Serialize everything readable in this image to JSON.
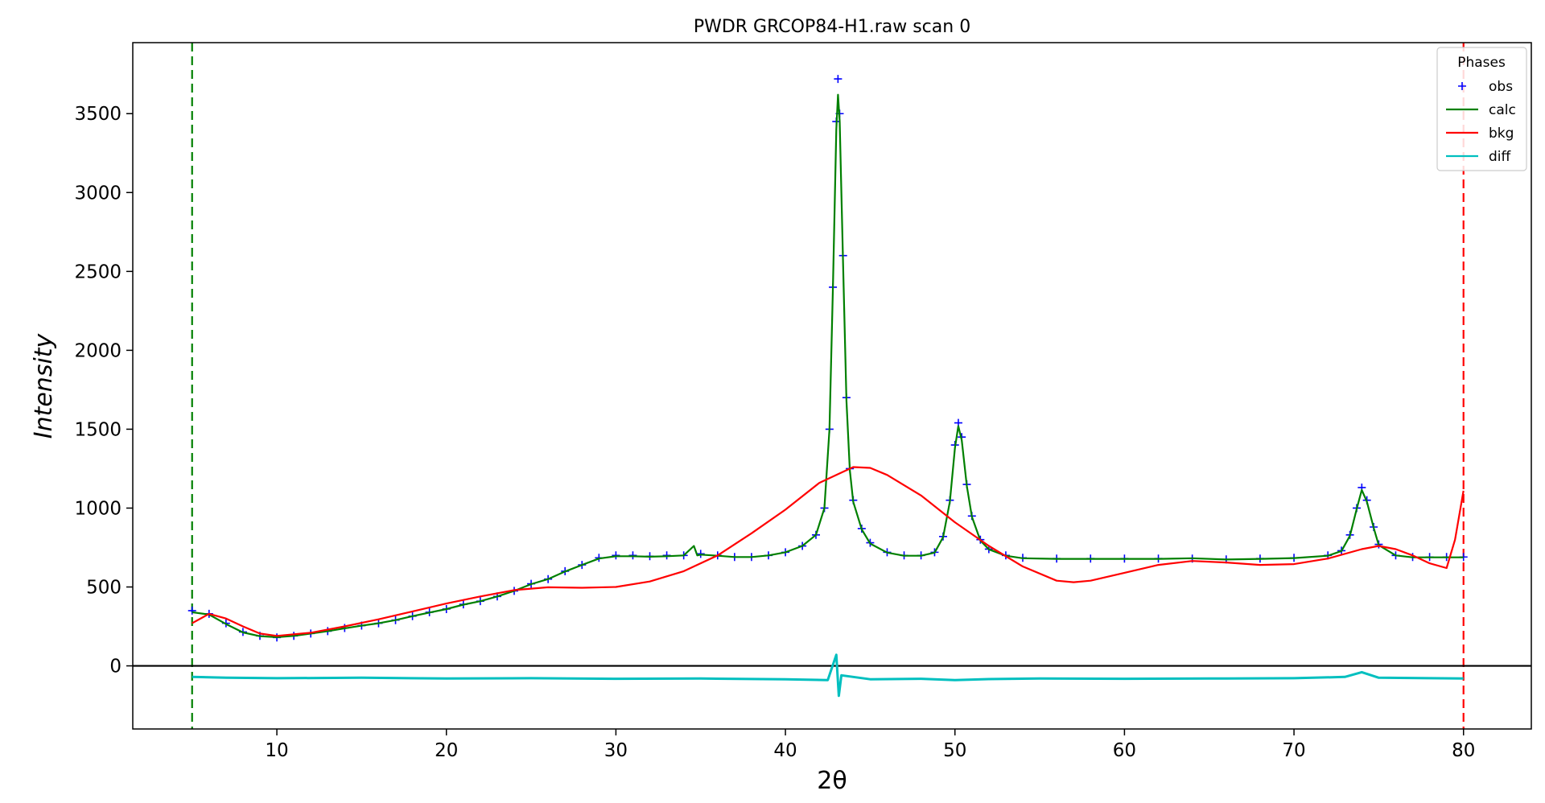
{
  "chart_data": {
    "type": "scatter",
    "title": "PWDR GRCOP84-H1.raw scan 0",
    "xlabel": "2θ",
    "ylabel": "Intensity",
    "xlim": [
      1.5,
      84
    ],
    "ylim": [
      -400,
      3950
    ],
    "x_ticks": [
      10,
      20,
      30,
      40,
      50,
      60,
      70,
      80
    ],
    "y_ticks": [
      0,
      500,
      1000,
      1500,
      2000,
      2500,
      3000,
      3500
    ],
    "grid": false,
    "legend": {
      "title": "Phases",
      "placement": "top-right",
      "entries": [
        {
          "name": "obs",
          "marker": "+",
          "color": "#0000ff"
        },
        {
          "name": "calc",
          "marker": "line",
          "color": "#008000"
        },
        {
          "name": "bkg",
          "marker": "line",
          "color": "#ff0000"
        },
        {
          "name": "diff",
          "marker": "line",
          "color": "#00bfbf"
        }
      ]
    },
    "reference_lines": [
      {
        "orientation": "vertical",
        "x": 5,
        "style": "dashed",
        "color": "#008000"
      },
      {
        "orientation": "vertical",
        "x": 80,
        "style": "dashed",
        "color": "#ff0000"
      },
      {
        "orientation": "horizontal",
        "y": 0,
        "style": "solid",
        "color": "#000000"
      }
    ],
    "series": [
      {
        "name": "obs",
        "color": "#0000ff",
        "marker": "+",
        "points": [
          [
            5,
            350
          ],
          [
            6,
            330
          ],
          [
            7,
            270
          ],
          [
            8,
            215
          ],
          [
            9,
            190
          ],
          [
            10,
            180
          ],
          [
            11,
            190
          ],
          [
            12,
            205
          ],
          [
            13,
            220
          ],
          [
            14,
            240
          ],
          [
            15,
            255
          ],
          [
            16,
            270
          ],
          [
            17,
            290
          ],
          [
            18,
            315
          ],
          [
            19,
            340
          ],
          [
            20,
            360
          ],
          [
            21,
            390
          ],
          [
            22,
            410
          ],
          [
            23,
            440
          ],
          [
            24,
            475
          ],
          [
            25,
            520
          ],
          [
            26,
            550
          ],
          [
            27,
            600
          ],
          [
            28,
            640
          ],
          [
            29,
            685
          ],
          [
            30,
            700
          ],
          [
            31,
            700
          ],
          [
            32,
            695
          ],
          [
            33,
            700
          ],
          [
            34,
            700
          ],
          [
            35,
            710
          ],
          [
            36,
            700
          ],
          [
            37,
            690
          ],
          [
            38,
            690
          ],
          [
            39,
            700
          ],
          [
            40,
            720
          ],
          [
            41,
            760
          ],
          [
            41.8,
            830
          ],
          [
            42.3,
            1000
          ],
          [
            42.6,
            1500
          ],
          [
            42.8,
            2400
          ],
          [
            43,
            3450
          ],
          [
            43.1,
            3720
          ],
          [
            43.2,
            3500
          ],
          [
            43.4,
            2600
          ],
          [
            43.6,
            1700
          ],
          [
            43.8,
            1250
          ],
          [
            44,
            1050
          ],
          [
            44.5,
            870
          ],
          [
            45,
            780
          ],
          [
            46,
            720
          ],
          [
            47,
            700
          ],
          [
            48,
            700
          ],
          [
            48.8,
            720
          ],
          [
            49.3,
            820
          ],
          [
            49.7,
            1050
          ],
          [
            50,
            1400
          ],
          [
            50.2,
            1540
          ],
          [
            50.4,
            1450
          ],
          [
            50.7,
            1150
          ],
          [
            51,
            950
          ],
          [
            51.5,
            800
          ],
          [
            52,
            740
          ],
          [
            53,
            700
          ],
          [
            54,
            685
          ],
          [
            56,
            680
          ],
          [
            58,
            680
          ],
          [
            60,
            680
          ],
          [
            62,
            680
          ],
          [
            64,
            680
          ],
          [
            66,
            675
          ],
          [
            68,
            680
          ],
          [
            70,
            685
          ],
          [
            72,
            700
          ],
          [
            72.8,
            730
          ],
          [
            73.3,
            830
          ],
          [
            73.7,
            1000
          ],
          [
            74,
            1130
          ],
          [
            74.3,
            1050
          ],
          [
            74.7,
            880
          ],
          [
            75,
            770
          ],
          [
            76,
            700
          ],
          [
            77,
            690
          ],
          [
            78,
            690
          ],
          [
            79,
            690
          ],
          [
            80,
            690
          ]
        ]
      },
      {
        "name": "calc",
        "color": "#008000",
        "points": [
          [
            5,
            340
          ],
          [
            6,
            325
          ],
          [
            7,
            265
          ],
          [
            8,
            212
          ],
          [
            9,
            188
          ],
          [
            10,
            182
          ],
          [
            11,
            190
          ],
          [
            12,
            205
          ],
          [
            13,
            220
          ],
          [
            14,
            238
          ],
          [
            15,
            255
          ],
          [
            16,
            270
          ],
          [
            17,
            290
          ],
          [
            18,
            315
          ],
          [
            19,
            338
          ],
          [
            20,
            360
          ],
          [
            21,
            388
          ],
          [
            22,
            410
          ],
          [
            23,
            440
          ],
          [
            24,
            475
          ],
          [
            25,
            518
          ],
          [
            26,
            550
          ],
          [
            27,
            598
          ],
          [
            28,
            640
          ],
          [
            29,
            680
          ],
          [
            30,
            695
          ],
          [
            31,
            695
          ],
          [
            32,
            692
          ],
          [
            33,
            695
          ],
          [
            34,
            700
          ],
          [
            34.6,
            760
          ],
          [
            34.8,
            700
          ],
          [
            35,
            705
          ],
          [
            36,
            698
          ],
          [
            37,
            690
          ],
          [
            38,
            690
          ],
          [
            39,
            700
          ],
          [
            40,
            720
          ],
          [
            41,
            760
          ],
          [
            41.8,
            830
          ],
          [
            42.3,
            1000
          ],
          [
            42.6,
            1500
          ],
          [
            42.8,
            2400
          ],
          [
            43,
            3400
          ],
          [
            43.1,
            3620
          ],
          [
            43.2,
            3450
          ],
          [
            43.4,
            2550
          ],
          [
            43.6,
            1680
          ],
          [
            43.8,
            1240
          ],
          [
            44,
            1040
          ],
          [
            44.5,
            865
          ],
          [
            45,
            775
          ],
          [
            46,
            718
          ],
          [
            47,
            698
          ],
          [
            48,
            698
          ],
          [
            48.8,
            718
          ],
          [
            49.3,
            815
          ],
          [
            49.7,
            1040
          ],
          [
            50,
            1380
          ],
          [
            50.2,
            1520
          ],
          [
            50.4,
            1430
          ],
          [
            50.7,
            1140
          ],
          [
            51,
            945
          ],
          [
            51.5,
            795
          ],
          [
            52,
            738
          ],
          [
            53,
            698
          ],
          [
            54,
            682
          ],
          [
            56,
            678
          ],
          [
            58,
            678
          ],
          [
            60,
            678
          ],
          [
            62,
            678
          ],
          [
            64,
            682
          ],
          [
            66,
            674
          ],
          [
            68,
            678
          ],
          [
            70,
            683
          ],
          [
            72,
            698
          ],
          [
            72.8,
            728
          ],
          [
            73.3,
            825
          ],
          [
            73.7,
            995
          ],
          [
            74,
            1115
          ],
          [
            74.3,
            1040
          ],
          [
            74.7,
            875
          ],
          [
            75,
            765
          ],
          [
            76,
            700
          ],
          [
            77,
            688
          ],
          [
            78,
            688
          ],
          [
            79,
            688
          ],
          [
            80,
            688
          ]
        ]
      },
      {
        "name": "bkg",
        "color": "#ff0000",
        "points": [
          [
            5,
            270
          ],
          [
            6,
            330
          ],
          [
            7,
            300
          ],
          [
            8,
            250
          ],
          [
            9,
            205
          ],
          [
            10,
            190
          ],
          [
            12,
            210
          ],
          [
            14,
            250
          ],
          [
            16,
            295
          ],
          [
            18,
            345
          ],
          [
            20,
            395
          ],
          [
            22,
            440
          ],
          [
            24,
            480
          ],
          [
            26,
            498
          ],
          [
            28,
            495
          ],
          [
            30,
            500
          ],
          [
            32,
            535
          ],
          [
            34,
            600
          ],
          [
            36,
            700
          ],
          [
            38,
            840
          ],
          [
            40,
            990
          ],
          [
            42,
            1160
          ],
          [
            44,
            1260
          ],
          [
            45,
            1255
          ],
          [
            46,
            1210
          ],
          [
            48,
            1080
          ],
          [
            50,
            910
          ],
          [
            52,
            760
          ],
          [
            54,
            630
          ],
          [
            56,
            540
          ],
          [
            57,
            530
          ],
          [
            58,
            540
          ],
          [
            60,
            590
          ],
          [
            62,
            640
          ],
          [
            64,
            665
          ],
          [
            66,
            655
          ],
          [
            68,
            640
          ],
          [
            70,
            645
          ],
          [
            72,
            680
          ],
          [
            74,
            740
          ],
          [
            75,
            760
          ],
          [
            76,
            740
          ],
          [
            77,
            700
          ],
          [
            78,
            650
          ],
          [
            79,
            620
          ],
          [
            79.5,
            800
          ],
          [
            80,
            1110
          ]
        ]
      },
      {
        "name": "diff",
        "color": "#00bfbf",
        "points": [
          [
            5,
            -70
          ],
          [
            7,
            -75
          ],
          [
            10,
            -78
          ],
          [
            15,
            -75
          ],
          [
            20,
            -80
          ],
          [
            25,
            -78
          ],
          [
            30,
            -82
          ],
          [
            35,
            -80
          ],
          [
            40,
            -85
          ],
          [
            42.5,
            -90
          ],
          [
            43,
            70
          ],
          [
            43.15,
            -190
          ],
          [
            43.3,
            -60
          ],
          [
            45,
            -85
          ],
          [
            48,
            -82
          ],
          [
            50,
            -90
          ],
          [
            52,
            -84
          ],
          [
            55,
            -80
          ],
          [
            60,
            -82
          ],
          [
            65,
            -80
          ],
          [
            70,
            -78
          ],
          [
            73,
            -70
          ],
          [
            74,
            -40
          ],
          [
            75,
            -75
          ],
          [
            78,
            -78
          ],
          [
            80,
            -80
          ]
        ]
      }
    ]
  }
}
